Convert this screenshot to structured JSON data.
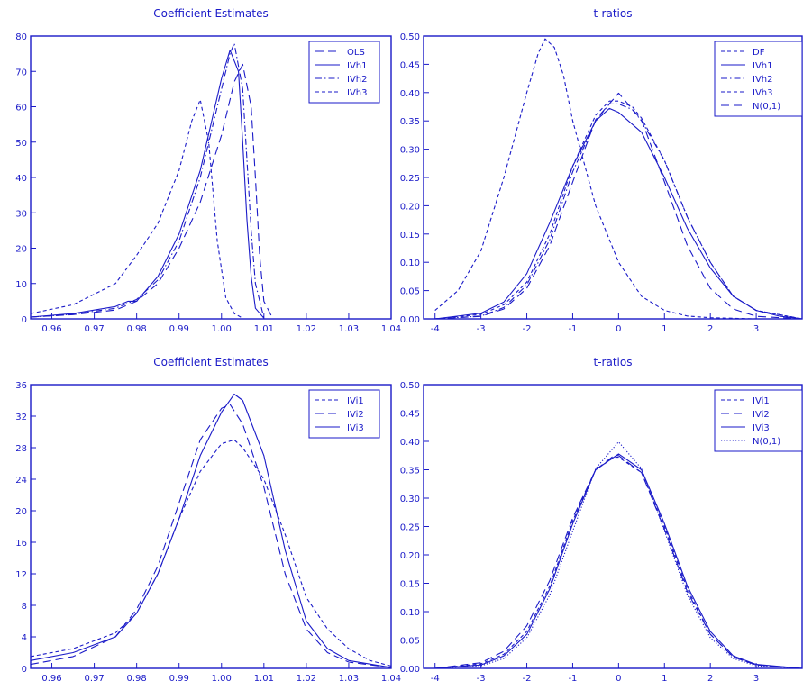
{
  "chart_data": [
    {
      "type": "line",
      "title": "Coefficient Estimates",
      "xlabel": "",
      "ylabel": "",
      "xlim": [
        0.955,
        1.04
      ],
      "ylim": [
        0,
        80
      ],
      "xticks": [
        "0.96",
        "0.97",
        "0.98",
        "0.99",
        "1.00",
        "1.01",
        "1.02",
        "1.03",
        "1.04"
      ],
      "yticks": [
        "0",
        "10",
        "20",
        "30",
        "40",
        "50",
        "60",
        "70",
        "80"
      ],
      "legend": "top-right",
      "series": [
        {
          "name": "OLS",
          "dash": "long",
          "x": [
            0.955,
            0.965,
            0.975,
            0.98,
            0.985,
            0.99,
            0.995,
            1.0,
            1.003,
            1.005,
            1.007,
            1.008,
            1.009,
            1.01,
            1.012
          ],
          "y": [
            0.5,
            1.2,
            2.5,
            5.0,
            10.0,
            20.0,
            33.0,
            52.0,
            67.0,
            72.0,
            60.0,
            40.0,
            18.0,
            5.0,
            0.3
          ]
        },
        {
          "name": "IVh1",
          "dash": "solid",
          "x": [
            0.955,
            0.965,
            0.975,
            0.978,
            0.98,
            0.985,
            0.99,
            0.995,
            1.0,
            1.002,
            1.004,
            1.005,
            1.006,
            1.007,
            1.008,
            1.01
          ],
          "y": [
            0.5,
            1.5,
            3.5,
            5.0,
            5.0,
            12.0,
            24.0,
            42.0,
            68.0,
            76.0,
            70.0,
            50.0,
            28.0,
            12.0,
            3.0,
            0.2
          ]
        },
        {
          "name": "IVh2",
          "dash": "dashdot",
          "x": [
            0.955,
            0.965,
            0.975,
            0.98,
            0.985,
            0.99,
            0.995,
            1.0,
            1.002,
            1.003,
            1.005,
            1.006,
            1.007,
            1.008,
            1.01
          ],
          "y": [
            0.5,
            1.3,
            3.0,
            5.5,
            11.0,
            22.0,
            40.0,
            65.0,
            75.0,
            78.0,
            65.0,
            45.0,
            25.0,
            10.0,
            0.3
          ]
        },
        {
          "name": "IVh3",
          "dash": "short",
          "x": [
            0.955,
            0.965,
            0.975,
            0.98,
            0.985,
            0.99,
            0.993,
            0.995,
            0.997,
            0.999,
            1.001,
            1.003,
            1.005
          ],
          "y": [
            1.5,
            4.0,
            10.0,
            18.0,
            27.0,
            42.0,
            56.0,
            62.0,
            50.0,
            22.0,
            6.0,
            1.5,
            0.2
          ]
        }
      ]
    },
    {
      "type": "line",
      "title": "t-ratios",
      "xlabel": "",
      "ylabel": "",
      "xlim": [
        -4.25,
        4.0
      ],
      "ylim": [
        0,
        0.5
      ],
      "xticks": [
        "-4",
        "-3",
        "-2",
        "-1",
        "0",
        "1",
        "2",
        "3"
      ],
      "yticks": [
        "0.00",
        "0.05",
        "0.10",
        "0.15",
        "0.20",
        "0.25",
        "0.30",
        "0.35",
        "0.40",
        "0.45",
        "0.50"
      ],
      "legend": "top-right",
      "series": [
        {
          "name": "DF",
          "dash": "short",
          "x": [
            -4.0,
            -3.5,
            -3.0,
            -2.5,
            -2.0,
            -1.75,
            -1.6,
            -1.4,
            -1.2,
            -1.0,
            -0.5,
            0.0,
            0.5,
            1.0,
            1.5,
            2.0,
            3.0
          ],
          "y": [
            0.015,
            0.05,
            0.12,
            0.25,
            0.4,
            0.47,
            0.495,
            0.48,
            0.43,
            0.35,
            0.2,
            0.1,
            0.04,
            0.015,
            0.005,
            0.002,
            0.0
          ]
        },
        {
          "name": "IVh1",
          "dash": "solid",
          "x": [
            -4.0,
            -3.0,
            -2.5,
            -2.0,
            -1.5,
            -1.0,
            -0.5,
            -0.2,
            0.0,
            0.5,
            1.0,
            1.5,
            2.0,
            2.5,
            3.0,
            3.5,
            4.0
          ],
          "y": [
            0.0,
            0.01,
            0.03,
            0.08,
            0.17,
            0.27,
            0.35,
            0.372,
            0.365,
            0.33,
            0.25,
            0.16,
            0.09,
            0.04,
            0.015,
            0.005,
            0.0
          ]
        },
        {
          "name": "IVh2",
          "dash": "dashdot",
          "x": [
            -4.0,
            -3.0,
            -2.5,
            -2.0,
            -1.5,
            -1.0,
            -0.5,
            -0.2,
            0.0,
            0.3,
            0.5,
            1.0,
            1.5,
            2.0,
            2.5,
            3.0,
            4.0
          ],
          "y": [
            0.0,
            0.005,
            0.02,
            0.06,
            0.14,
            0.26,
            0.35,
            0.38,
            0.38,
            0.37,
            0.35,
            0.28,
            0.18,
            0.1,
            0.04,
            0.015,
            0.0
          ]
        },
        {
          "name": "IVh3",
          "dash": "short",
          "x": [
            -4.0,
            -3.0,
            -2.5,
            -2.0,
            -1.5,
            -1.0,
            -0.5,
            -0.2,
            0.0,
            0.3,
            0.5,
            1.0,
            1.5,
            2.0,
            2.5,
            3.0,
            4.0
          ],
          "y": [
            0.0,
            0.008,
            0.025,
            0.065,
            0.15,
            0.27,
            0.36,
            0.385,
            0.385,
            0.375,
            0.355,
            0.28,
            0.18,
            0.1,
            0.04,
            0.015,
            0.0
          ]
        },
        {
          "name": "N(0,1)",
          "dash": "long",
          "x": [
            -4.0,
            -3.0,
            -2.5,
            -2.0,
            -1.5,
            -1.0,
            -0.5,
            0.0,
            0.5,
            1.0,
            1.5,
            2.0,
            2.5,
            3.0,
            4.0
          ],
          "y": [
            0.0001,
            0.0044,
            0.0175,
            0.054,
            0.1295,
            0.242,
            0.352,
            0.399,
            0.352,
            0.242,
            0.1295,
            0.054,
            0.0175,
            0.0044,
            0.0001
          ]
        }
      ]
    },
    {
      "type": "line",
      "title": "Coefficient Estimates",
      "xlabel": "",
      "ylabel": "",
      "xlim": [
        0.955,
        1.04
      ],
      "ylim": [
        0,
        36
      ],
      "xticks": [
        "0.96",
        "0.97",
        "0.98",
        "0.99",
        "1.00",
        "1.01",
        "1.02",
        "1.03",
        "1.04"
      ],
      "yticks": [
        "0",
        "4",
        "8",
        "12",
        "16",
        "20",
        "24",
        "28",
        "32",
        "36"
      ],
      "legend": "top-right",
      "series": [
        {
          "name": "IVi1",
          "dash": "short",
          "x": [
            0.955,
            0.965,
            0.975,
            0.98,
            0.985,
            0.99,
            0.995,
            1.0,
            1.003,
            1.005,
            1.01,
            1.015,
            1.02,
            1.025,
            1.03,
            1.035,
            1.04
          ],
          "y": [
            1.5,
            2.5,
            4.5,
            7.0,
            12.0,
            19.0,
            25.0,
            28.5,
            29.0,
            28.0,
            24.0,
            17.0,
            9.0,
            5.0,
            2.5,
            1.0,
            0.3
          ]
        },
        {
          "name": "IVi2",
          "dash": "long",
          "x": [
            0.955,
            0.965,
            0.975,
            0.98,
            0.985,
            0.99,
            0.995,
            1.0,
            1.002,
            1.005,
            1.01,
            1.015,
            1.02,
            1.025,
            1.03,
            1.04
          ],
          "y": [
            0.5,
            1.5,
            4.0,
            7.5,
            13.0,
            21.0,
            29.0,
            33.0,
            33.5,
            31.0,
            23.0,
            12.0,
            5.0,
            2.0,
            0.8,
            0.1
          ]
        },
        {
          "name": "IVi3",
          "dash": "solid",
          "x": [
            0.955,
            0.965,
            0.975,
            0.98,
            0.985,
            0.99,
            0.995,
            1.0,
            1.003,
            1.005,
            1.01,
            1.015,
            1.02,
            1.025,
            1.03,
            1.04
          ],
          "y": [
            1.0,
            2.0,
            4.0,
            7.0,
            12.0,
            19.0,
            27.0,
            32.5,
            34.8,
            34.0,
            27.0,
            15.0,
            6.0,
            2.5,
            1.0,
            0.1
          ]
        }
      ]
    },
    {
      "type": "line",
      "title": "t-ratios",
      "xlabel": "",
      "ylabel": "",
      "xlim": [
        -4.25,
        4.0
      ],
      "ylim": [
        0,
        0.5
      ],
      "xticks": [
        "-4",
        "-3",
        "-2",
        "-1",
        "0",
        "1",
        "2",
        "3"
      ],
      "yticks": [
        "0.00",
        "0.05",
        "0.10",
        "0.15",
        "0.20",
        "0.25",
        "0.30",
        "0.35",
        "0.40",
        "0.45",
        "0.50"
      ],
      "legend": "top-right",
      "series": [
        {
          "name": "IVi1",
          "dash": "short",
          "x": [
            -4.0,
            -3.0,
            -2.5,
            -2.0,
            -1.5,
            -1.0,
            -0.5,
            -0.1,
            0.0,
            0.5,
            1.0,
            1.5,
            2.0,
            2.5,
            3.0,
            4.0
          ],
          "y": [
            0.0,
            0.008,
            0.025,
            0.065,
            0.145,
            0.26,
            0.35,
            0.372,
            0.372,
            0.345,
            0.25,
            0.14,
            0.06,
            0.02,
            0.006,
            0.0
          ]
        },
        {
          "name": "IVi2",
          "dash": "long",
          "x": [
            -4.0,
            -3.0,
            -2.5,
            -2.0,
            -1.5,
            -1.0,
            -0.5,
            -0.1,
            0.0,
            0.5,
            1.0,
            1.5,
            2.0,
            2.5,
            3.0,
            4.0
          ],
          "y": [
            0.0,
            0.01,
            0.03,
            0.075,
            0.155,
            0.265,
            0.35,
            0.375,
            0.375,
            0.345,
            0.245,
            0.135,
            0.06,
            0.02,
            0.006,
            0.0
          ]
        },
        {
          "name": "IVi3",
          "dash": "solid",
          "x": [
            -4.0,
            -3.0,
            -2.5,
            -2.0,
            -1.5,
            -1.0,
            -0.5,
            0.0,
            0.5,
            1.0,
            1.5,
            2.0,
            2.5,
            3.0,
            4.0
          ],
          "y": [
            0.0,
            0.006,
            0.022,
            0.06,
            0.14,
            0.255,
            0.35,
            0.378,
            0.35,
            0.255,
            0.145,
            0.065,
            0.022,
            0.007,
            0.0
          ]
        },
        {
          "name": "N(0,1)",
          "dash": "dotted",
          "x": [
            -4.0,
            -3.0,
            -2.5,
            -2.0,
            -1.5,
            -1.0,
            -0.5,
            0.0,
            0.5,
            1.0,
            1.5,
            2.0,
            2.5,
            3.0,
            4.0
          ],
          "y": [
            0.0001,
            0.0044,
            0.0175,
            0.054,
            0.1295,
            0.242,
            0.352,
            0.399,
            0.352,
            0.242,
            0.1295,
            0.054,
            0.0175,
            0.0044,
            0.0001
          ]
        }
      ]
    }
  ],
  "colors": {
    "ink": "#1a1ac8"
  }
}
